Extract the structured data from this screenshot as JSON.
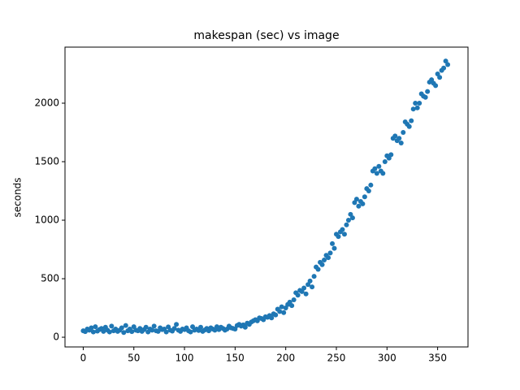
{
  "chart_data": {
    "type": "scatter",
    "title": "makespan (sec) vs image",
    "ylabel": "seconds",
    "color": "#1f77b4",
    "xlim": [
      -18,
      380
    ],
    "ylim": [
      -83,
      2479
    ],
    "xticks": [
      0,
      50,
      100,
      150,
      200,
      250,
      300,
      350
    ],
    "yticks": [
      0,
      500,
      1000,
      1500,
      2000
    ],
    "x": [
      0,
      2,
      4,
      6,
      8,
      10,
      12,
      14,
      16,
      18,
      20,
      22,
      24,
      26,
      28,
      30,
      32,
      34,
      36,
      38,
      40,
      42,
      44,
      46,
      48,
      50,
      52,
      54,
      56,
      58,
      60,
      62,
      64,
      66,
      68,
      70,
      72,
      74,
      76,
      78,
      80,
      82,
      84,
      86,
      88,
      90,
      92,
      94,
      96,
      98,
      100,
      102,
      104,
      106,
      108,
      110,
      112,
      114,
      116,
      118,
      120,
      122,
      124,
      126,
      128,
      130,
      132,
      134,
      136,
      138,
      140,
      142,
      144,
      146,
      148,
      150,
      152,
      154,
      156,
      158,
      160,
      162,
      164,
      166,
      168,
      170,
      172,
      174,
      176,
      178,
      180,
      182,
      184,
      186,
      188,
      190,
      192,
      194,
      196,
      198,
      200,
      202,
      204,
      206,
      208,
      210,
      212,
      214,
      216,
      218,
      220,
      222,
      224,
      226,
      228,
      230,
      232,
      234,
      236,
      238,
      240,
      242,
      244,
      246,
      248,
      250,
      252,
      254,
      256,
      258,
      260,
      262,
      264,
      266,
      268,
      270,
      272,
      274,
      276,
      278,
      280,
      282,
      284,
      286,
      288,
      290,
      292,
      294,
      296,
      298,
      300,
      302,
      304,
      306,
      308,
      310,
      312,
      314,
      316,
      318,
      320,
      322,
      324,
      326,
      328,
      330,
      332,
      334,
      336,
      338,
      340,
      342,
      344,
      346,
      348,
      350,
      352,
      354,
      356,
      358,
      360
    ],
    "values": [
      55,
      48,
      70,
      60,
      80,
      45,
      90,
      52,
      65,
      75,
      50,
      85,
      60,
      45,
      95,
      55,
      70,
      50,
      60,
      80,
      40,
      100,
      55,
      70,
      48,
      90,
      60,
      55,
      75,
      50,
      65,
      85,
      45,
      70,
      60,
      95,
      55,
      50,
      80,
      65,
      70,
      45,
      88,
      60,
      52,
      75,
      110,
      60,
      50,
      70,
      65,
      80,
      55,
      45,
      90,
      60,
      70,
      58,
      85,
      50,
      62,
      75,
      55,
      80,
      70,
      60,
      90,
      65,
      85,
      75,
      60,
      70,
      95,
      80,
      75,
      70,
      100,
      110,
      95,
      105,
      85,
      120,
      110,
      130,
      140,
      150,
      140,
      165,
      160,
      150,
      175,
      170,
      185,
      165,
      200,
      190,
      240,
      220,
      260,
      210,
      250,
      280,
      300,
      270,
      320,
      380,
      360,
      400,
      390,
      420,
      370,
      450,
      480,
      430,
      520,
      600,
      580,
      640,
      620,
      660,
      700,
      680,
      720,
      800,
      760,
      880,
      860,
      900,
      920,
      880,
      960,
      1000,
      1050,
      1020,
      1150,
      1180,
      1120,
      1160,
      1140,
      1200,
      1270,
      1250,
      1300,
      1420,
      1440,
      1400,
      1460,
      1420,
      1400,
      1500,
      1550,
      1530,
      1560,
      1700,
      1720,
      1680,
      1700,
      1660,
      1750,
      1840,
      1820,
      1800,
      1850,
      1950,
      2000,
      1960,
      2000,
      2080,
      2060,
      2050,
      2100,
      2180,
      2200,
      2170,
      2150,
      2250,
      2220,
      2280,
      2300,
      2360,
      2330
    ]
  }
}
